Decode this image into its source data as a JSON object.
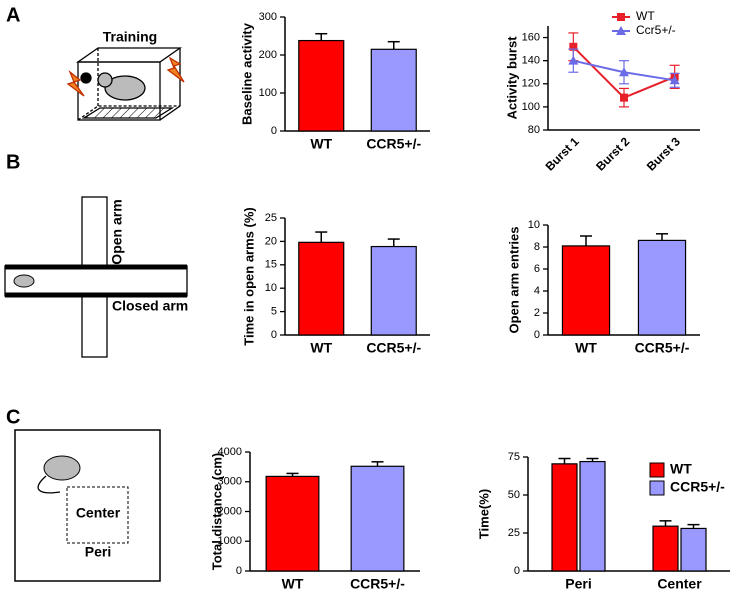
{
  "panels": [
    "A",
    "B",
    "C"
  ],
  "diagrams": {
    "training": "Training",
    "open_arm": "Open arm",
    "closed_arm": "Closed arm",
    "center": "Center",
    "peri": "Peri"
  },
  "chart_data": [
    {
      "type": "bar",
      "ylabel": "Baseline activity",
      "categories": [
        "WT",
        "CCR5+/-"
      ],
      "values": [
        238,
        215
      ],
      "errors": [
        18,
        20
      ],
      "colors": [
        "#ff0000",
        "#9999ff"
      ],
      "ylim": [
        0,
        300
      ],
      "yticks": [
        0,
        100,
        200,
        300
      ]
    },
    {
      "type": "line",
      "ylabel": "Activity burst",
      "categories": [
        "Burst 1",
        "Burst 2",
        "Burst 3"
      ],
      "series": [
        {
          "name": "WT",
          "color": "#e8202a",
          "marker": "square",
          "values": [
            152,
            108,
            126
          ],
          "errors": [
            12,
            8,
            10
          ]
        },
        {
          "name": "Ccr5+/-",
          "color": "#6b6be8",
          "marker": "triangle",
          "values": [
            140,
            130,
            123
          ],
          "errors": [
            10,
            10,
            6
          ]
        }
      ],
      "ylim": [
        80,
        170
      ],
      "yticks": [
        80,
        100,
        120,
        140,
        160
      ],
      "legend": "top-right"
    },
    {
      "type": "bar",
      "ylabel": "Time in open arms (%)",
      "categories": [
        "WT",
        "CCR5+/-"
      ],
      "values": [
        19.8,
        18.9
      ],
      "errors": [
        2.2,
        1.6
      ],
      "colors": [
        "#ff0000",
        "#9999ff"
      ],
      "ylim": [
        0,
        25
      ],
      "yticks": [
        0,
        5,
        10,
        15,
        20,
        25
      ]
    },
    {
      "type": "bar",
      "ylabel": "Open arm entries",
      "categories": [
        "WT",
        "CCR5+/-"
      ],
      "values": [
        8.1,
        8.6
      ],
      "errors": [
        0.9,
        0.6
      ],
      "colors": [
        "#ff0000",
        "#9999ff"
      ],
      "ylim": [
        0,
        10
      ],
      "yticks": [
        0,
        2,
        4,
        6,
        8,
        10
      ]
    },
    {
      "type": "bar",
      "ylabel": "Total distance (cm)",
      "categories": [
        "WT",
        "CCR5+/-"
      ],
      "values": [
        3180,
        3520
      ],
      "errors": [
        100,
        150
      ],
      "colors": [
        "#ff0000",
        "#9999ff"
      ],
      "ylim": [
        0,
        4000
      ],
      "yticks": [
        0,
        1000,
        2000,
        3000,
        4000
      ]
    },
    {
      "type": "grouped_bar",
      "ylabel": "Time(%)",
      "categories": [
        "Peri",
        "Center"
      ],
      "series": [
        {
          "name": "WT",
          "color": "#ff0000",
          "values": [
            70.5,
            29.5
          ],
          "errors": [
            3.5,
            3.5
          ]
        },
        {
          "name": "CCR5+/-",
          "color": "#9999ff",
          "values": [
            72,
            28
          ],
          "errors": [
            2,
            2.5
          ]
        }
      ],
      "ylim": [
        0,
        75
      ],
      "yticks": [
        0,
        25,
        50,
        75
      ],
      "legend": "top-right"
    }
  ]
}
